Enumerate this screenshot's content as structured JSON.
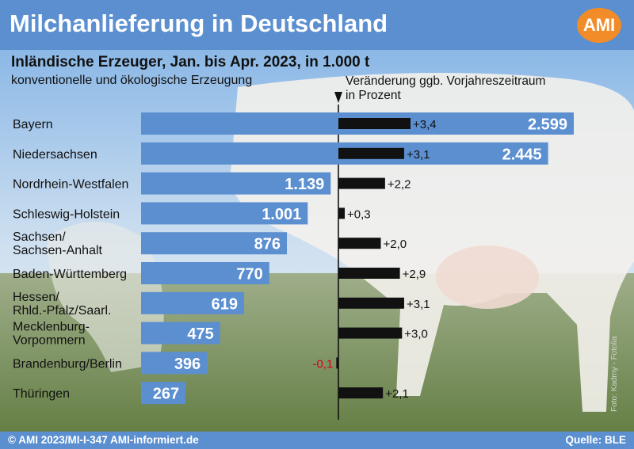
{
  "header": {
    "title": "Milchanlieferung in Deutschland",
    "logo": "AMI"
  },
  "chart_data": {
    "type": "bar",
    "title": "Inländische Erzeuger, Jan. bis Apr. 2023, in 1.000 t",
    "subtitle": "konventionelle und ökologische Erzeugung",
    "change_title": "Veränderung ggb. Vorjahreszeitraum  in Prozent",
    "categories": [
      [
        "Bayern"
      ],
      [
        "Niedersachsen"
      ],
      [
        "Nordrhein-Westfalen"
      ],
      [
        "Schleswig-Holstein"
      ],
      [
        "Sachsen/",
        "Sachsen-Anhalt"
      ],
      [
        "Baden-Württemberg"
      ],
      [
        "Hessen/",
        "Rhld.-Pfalz/Saarl."
      ],
      [
        "Mecklenburg-",
        "Vorpommern"
      ],
      [
        "Brandenburg/Berlin"
      ],
      [
        "Thüringen"
      ]
    ],
    "series": [
      {
        "values": [
          2599,
          2445,
          1139,
          1001,
          876,
          770,
          619,
          475,
          396,
          267
        ],
        "labels": [
          "2.599",
          "2.445",
          "1.139",
          "1.001",
          "876",
          "770",
          "619",
          "475",
          "396",
          "267"
        ]
      },
      {
        "values": [
          3.4,
          3.1,
          2.2,
          0.3,
          2.0,
          2.9,
          3.1,
          3.0,
          -0.1,
          2.1
        ],
        "labels": [
          "+3,4",
          "+3,1",
          "+2,2",
          "+0,3",
          "+2,0",
          "+2,9",
          "+3,1",
          "+3,0",
          "-0,1",
          "+2,1"
        ]
      }
    ],
    "colors": {
      "volume_bar": "#5b8fd0",
      "change_bar": "#111111",
      "negative_label": "#d0021b"
    }
  },
  "footer": {
    "left": "© AMI 2023/MI-I-347 AMI-informiert.de",
    "right": "Quelle: BLE"
  },
  "photo_credit": "Foto: Kadmy - Fotolia"
}
